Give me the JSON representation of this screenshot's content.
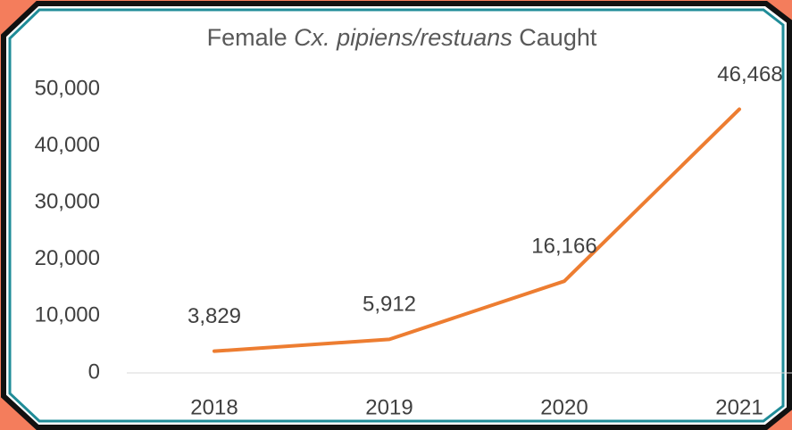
{
  "chart_data": {
    "type": "line",
    "title_parts": [
      "Female",
      "Cx. pipiens/restuans",
      "Caught"
    ],
    "categories": [
      "2018",
      "2019",
      "2020",
      "2021"
    ],
    "series": [
      {
        "name": "Female Cx. pipiens/restuans",
        "color": "#ed7d31",
        "values": [
          3829,
          5912,
          16166,
          46468
        ],
        "value_labels": [
          "3,829",
          "5,912",
          "16,166",
          "46,468"
        ]
      }
    ],
    "ylim": [
      0,
      50000
    ],
    "yticks": [
      0,
      {
        "value": 10000,
        "label": "10,000"
      },
      {
        "value": 20000,
        "label": "20,000"
      },
      {
        "value": 30000,
        "label": "30,000"
      },
      {
        "value": 40000,
        "label": "40,000"
      },
      {
        "value": 50000,
        "label": "50,000"
      }
    ],
    "grid": false
  }
}
